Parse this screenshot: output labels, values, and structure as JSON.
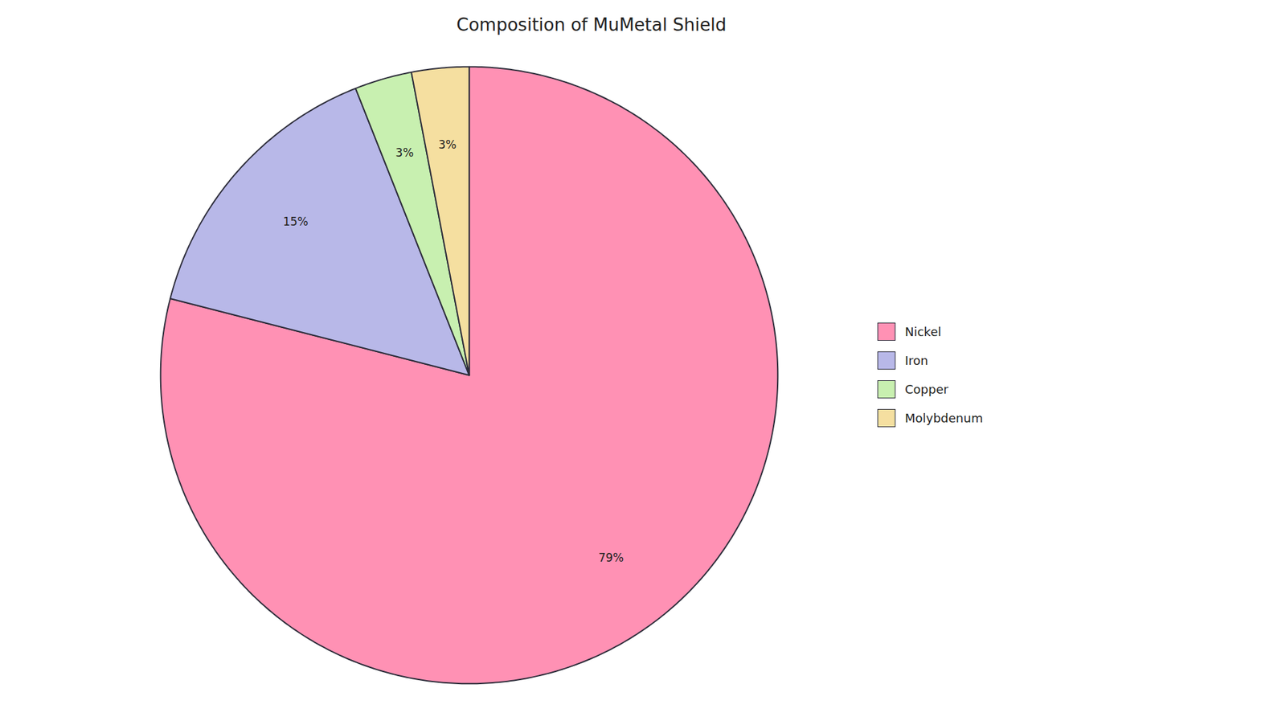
{
  "chart_data": {
    "type": "pie",
    "title": "Composition of MuMetal Shield",
    "categories": [
      "Nickel",
      "Iron",
      "Copper",
      "Molybdenum"
    ],
    "values": [
      79,
      15,
      3,
      3
    ],
    "value_labels": [
      "79%",
      "15%",
      "3%",
      "3%"
    ],
    "colors": [
      "#FF91B4",
      "#B8B8E8",
      "#C8F0B0",
      "#F5DFA0"
    ],
    "data_labels": true,
    "legend": "right"
  }
}
